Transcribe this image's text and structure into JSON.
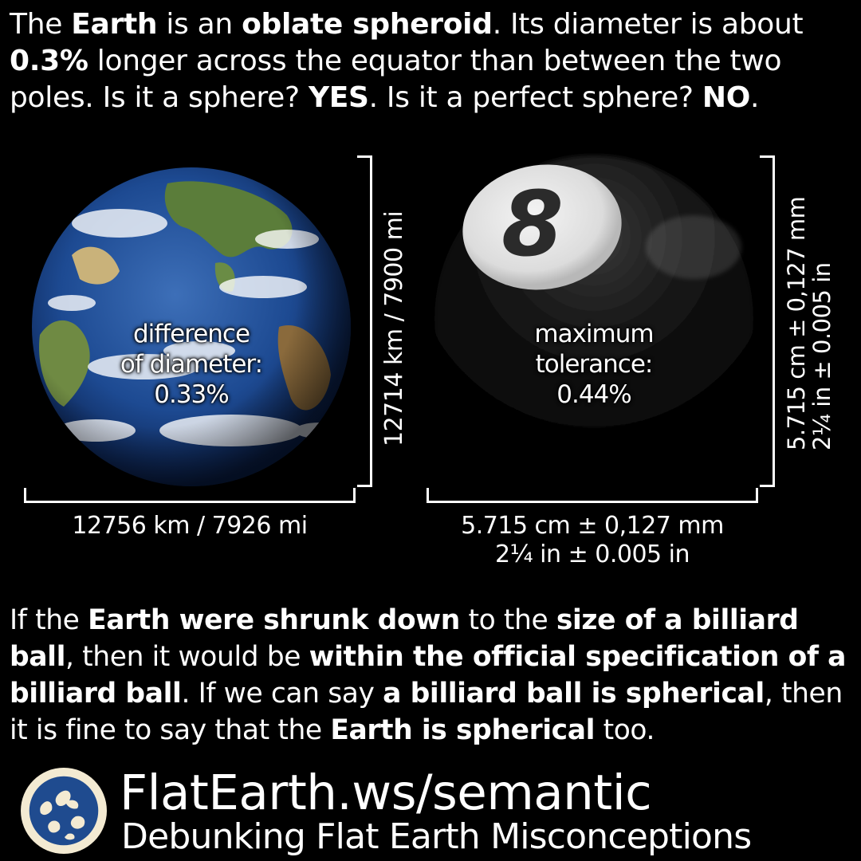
{
  "intro": {
    "t1": "The ",
    "b1": "Earth",
    "t2": " is an ",
    "b2": "oblate spheroid",
    "t3": ". Its diameter is about ",
    "b3": "0.3%",
    "t4": " longer across the equator than between the two poles. Is it a sphere? ",
    "b4": "YES",
    "t5": ". Is it a perfect sphere? ",
    "b5": "NO",
    "t6": "."
  },
  "earth": {
    "label_line1": "difference",
    "label_line2": "of diameter:",
    "label_line3": "0.33%",
    "width_label": "12756 km / 7926 mi",
    "height_label": "12714 km / 7900 mi"
  },
  "ball": {
    "number": "8",
    "label_line1": "maximum",
    "label_line2": "tolerance:",
    "label_line3": "0.44%",
    "width_line1": "5.715 cm ± 0,127 mm",
    "width_line2": "2¼ in ± 0.005 in",
    "height_line1": "5.715 cm ± 0,127 mm",
    "height_line2": "2¼ in ± 0.005 in"
  },
  "outro": {
    "t1": "If the ",
    "b1": "Earth were shrunk down",
    "t2": " to the ",
    "b2": "size of a billiard ball",
    "t3": ", then it would be ",
    "b3": "within the official specification of a billiard ball",
    "t4": ". If we can say ",
    "b4": "a billiard ball is spherical",
    "t5": ", then it is fine to say that the ",
    "b5": "Earth is spherical",
    "t6": " too."
  },
  "footer": {
    "title": "FlatEarth.ws/semantic",
    "subtitle": "Debunking Flat Earth Misconceptions",
    "logo_icon": "globe-map-logo"
  },
  "colors": {
    "background": "#000000",
    "text": "#ffffff",
    "ocean": "#1f4b8f",
    "logo_ring": "#f3ead2"
  }
}
